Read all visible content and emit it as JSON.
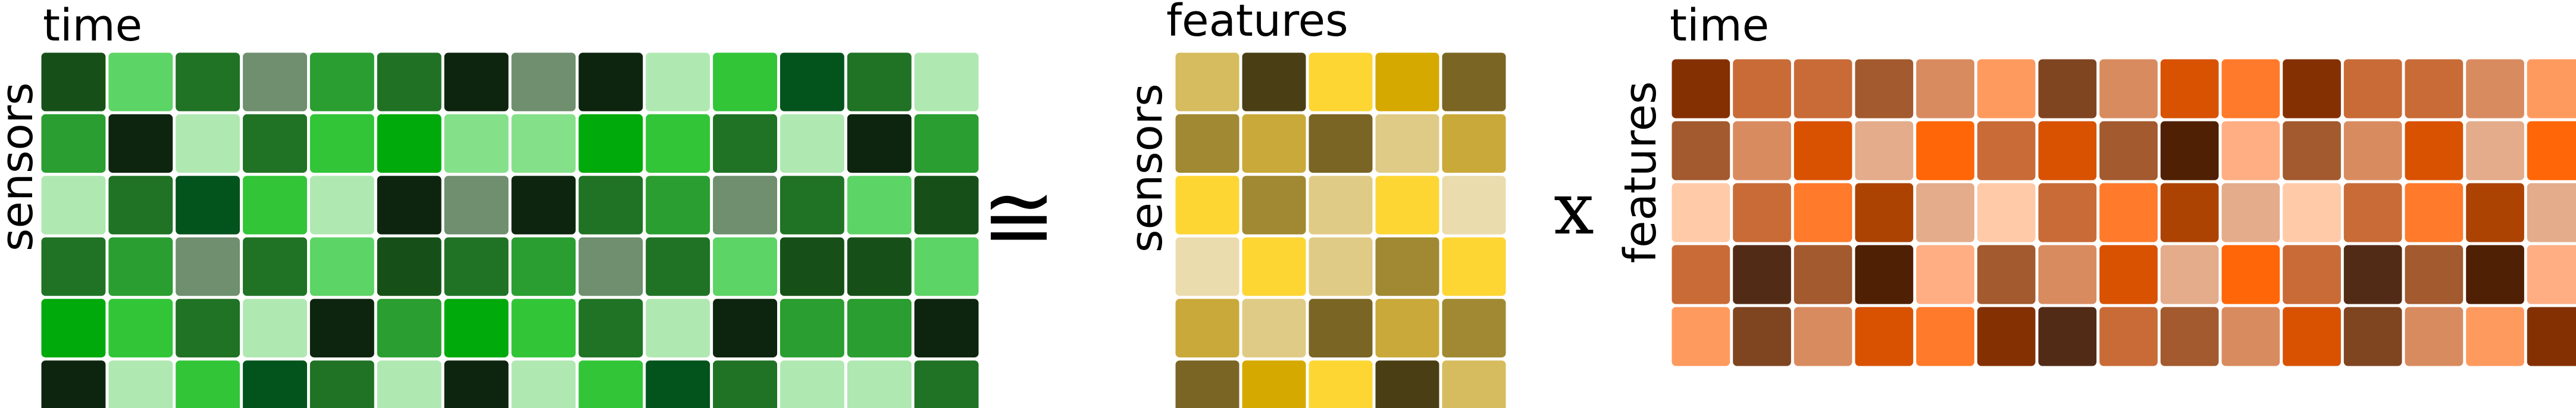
{
  "panels": [
    {
      "id": "sensors-time",
      "col_label": "time",
      "row_label": "sensors",
      "rows": 6,
      "cols": 14,
      "colors": [
        [
          "#165018",
          "#5dd466",
          "#207225",
          "#6f8f6f",
          "#2a9e30",
          "#217125",
          "#0d250e",
          "#6f8f6f",
          "#0d250e",
          "#b0e8b2",
          "#32c538",
          "#03531c",
          "#207225",
          "#b0e8b2"
        ],
        [
          "#2a9e30",
          "#0d250e",
          "#b0e8b2",
          "#207225",
          "#32c538",
          "#00aa0b",
          "#85e08a",
          "#85e08a",
          "#00aa0b",
          "#32c538",
          "#207225",
          "#b0e8b2",
          "#0d250e",
          "#2a9e30"
        ],
        [
          "#b0e8b2",
          "#207225",
          "#03531c",
          "#32c538",
          "#b0e8b2",
          "#0d250e",
          "#6f8f6f",
          "#0d250e",
          "#207225",
          "#2a9e30",
          "#6f8f6f",
          "#207225",
          "#5dd466",
          "#165018"
        ],
        [
          "#207225",
          "#2a9e30",
          "#6f8f6f",
          "#207225",
          "#5dd466",
          "#165018",
          "#207225",
          "#2a9e30",
          "#6f8f6f",
          "#207225",
          "#5dd466",
          "#165018",
          "#165018",
          "#5dd466"
        ],
        [
          "#00aa0b",
          "#32c538",
          "#207225",
          "#b0e8b2",
          "#0d250e",
          "#2a9e30",
          "#00aa0b",
          "#32c538",
          "#207225",
          "#b0e8b2",
          "#0d250e",
          "#2a9e30",
          "#2a9e30",
          "#0d250e"
        ],
        [
          "#0d250e",
          "#b0e8b2",
          "#32c538",
          "#03531c",
          "#207225",
          "#b0e8b2",
          "#0d250e",
          "#b0e8b2",
          "#32c538",
          "#03531c",
          "#207225",
          "#b0e8b2",
          "#b0e8b2",
          "#207225"
        ]
      ]
    },
    {
      "id": "sensors-features",
      "col_label": "features",
      "row_label": "sensors",
      "rows": 6,
      "cols": 5,
      "colors": [
        [
          "#d6bc5e",
          "#4a3e14",
          "#fdd634",
          "#d6a900",
          "#7a6524"
        ],
        [
          "#a08932",
          "#c9a93a",
          "#7a6524",
          "#e0cb86",
          "#c9a93a"
        ],
        [
          "#fdd634",
          "#a08932",
          "#e0cb86",
          "#fdd634",
          "#ebdcae"
        ],
        [
          "#ebdcae",
          "#fdd634",
          "#e0cb86",
          "#a08932",
          "#fdd634"
        ],
        [
          "#c9a93a",
          "#e0cb86",
          "#7a6524",
          "#c9a93a",
          "#a08932"
        ],
        [
          "#7a6524",
          "#d6a900",
          "#fdd634",
          "#4a3e14",
          "#d6bc5e"
        ]
      ]
    },
    {
      "id": "features-time",
      "col_label": "time",
      "row_label": "features",
      "rows": 5,
      "cols": 15,
      "colors": [
        [
          "#843003",
          "#c96b37",
          "#c96b37",
          "#a25a2e",
          "#d98b60",
          "#ff9a5f",
          "#7f4521",
          "#d98b60",
          "#d85202",
          "#ff7a2a",
          "#843003",
          "#c96b37",
          "#c96b37",
          "#d98b60",
          "#ff9a5f"
        ],
        [
          "#a25a2e",
          "#d98b60",
          "#d85202",
          "#e4ac8b",
          "#ff6608",
          "#c96b37",
          "#d85202",
          "#a25a2e",
          "#4f2004",
          "#ffae84",
          "#a25a2e",
          "#d98b60",
          "#d85202",
          "#e4ac8b",
          "#ff6608"
        ],
        [
          "#ffcaa8",
          "#c96b37",
          "#ff7a2a",
          "#ad4302",
          "#e4ac8b",
          "#ffcaa8",
          "#c96b37",
          "#ff7a2a",
          "#ad4302",
          "#e4ac8b",
          "#ffcaa8",
          "#c96b37",
          "#ff7a2a",
          "#ad4302",
          "#e4ac8b"
        ],
        [
          "#c96b37",
          "#522b16",
          "#a25a2e",
          "#4f2004",
          "#ffae84",
          "#a25a2e",
          "#d98b60",
          "#d85202",
          "#e4ac8b",
          "#ff6608",
          "#c96b37",
          "#522b16",
          "#a25a2e",
          "#4f2004",
          "#ffae84"
        ],
        [
          "#ff9a5f",
          "#7f4521",
          "#d98b60",
          "#d85202",
          "#ff7a2a",
          "#843003",
          "#522b16",
          "#c96b37",
          "#a25a2e",
          "#d98b60",
          "#d85202",
          "#7f4521",
          "#d98b60",
          "#ff9a5f",
          "#843003"
        ]
      ]
    }
  ],
  "operators": {
    "approx": "≅",
    "times": "x"
  }
}
